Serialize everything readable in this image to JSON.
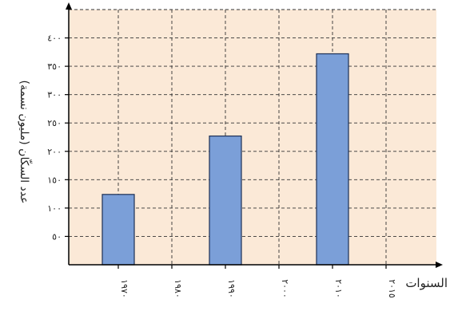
{
  "chart_data": {
    "type": "bar",
    "categories": [
      "١٩٧٠",
      "١٩٨٠",
      "١٩٩٠",
      "٢٠٠٠",
      "٢٠١٠",
      "٢٠١٥"
    ],
    "values": [
      124,
      null,
      227,
      null,
      372,
      null
    ],
    "yticks": [
      50,
      100,
      150,
      200,
      250,
      300,
      350,
      400
    ],
    "ytick_labels": [
      "٥٠",
      "١٠٠",
      "١٥٠",
      "٢٠٠",
      "٢٥٠",
      "٣٠٠",
      "٣٥٠",
      "٤٠٠"
    ],
    "ylim": [
      0,
      450
    ],
    "xlabel": "السنوات",
    "ylabel": "عدد السكّان (مليون نسمة)",
    "grid": true,
    "colors": {
      "bar": "#7b9fd8",
      "bar_edge": "#1c2f55",
      "plot_bg": "#fbe9d7",
      "grid": "#333333",
      "axis": "#000000"
    }
  }
}
